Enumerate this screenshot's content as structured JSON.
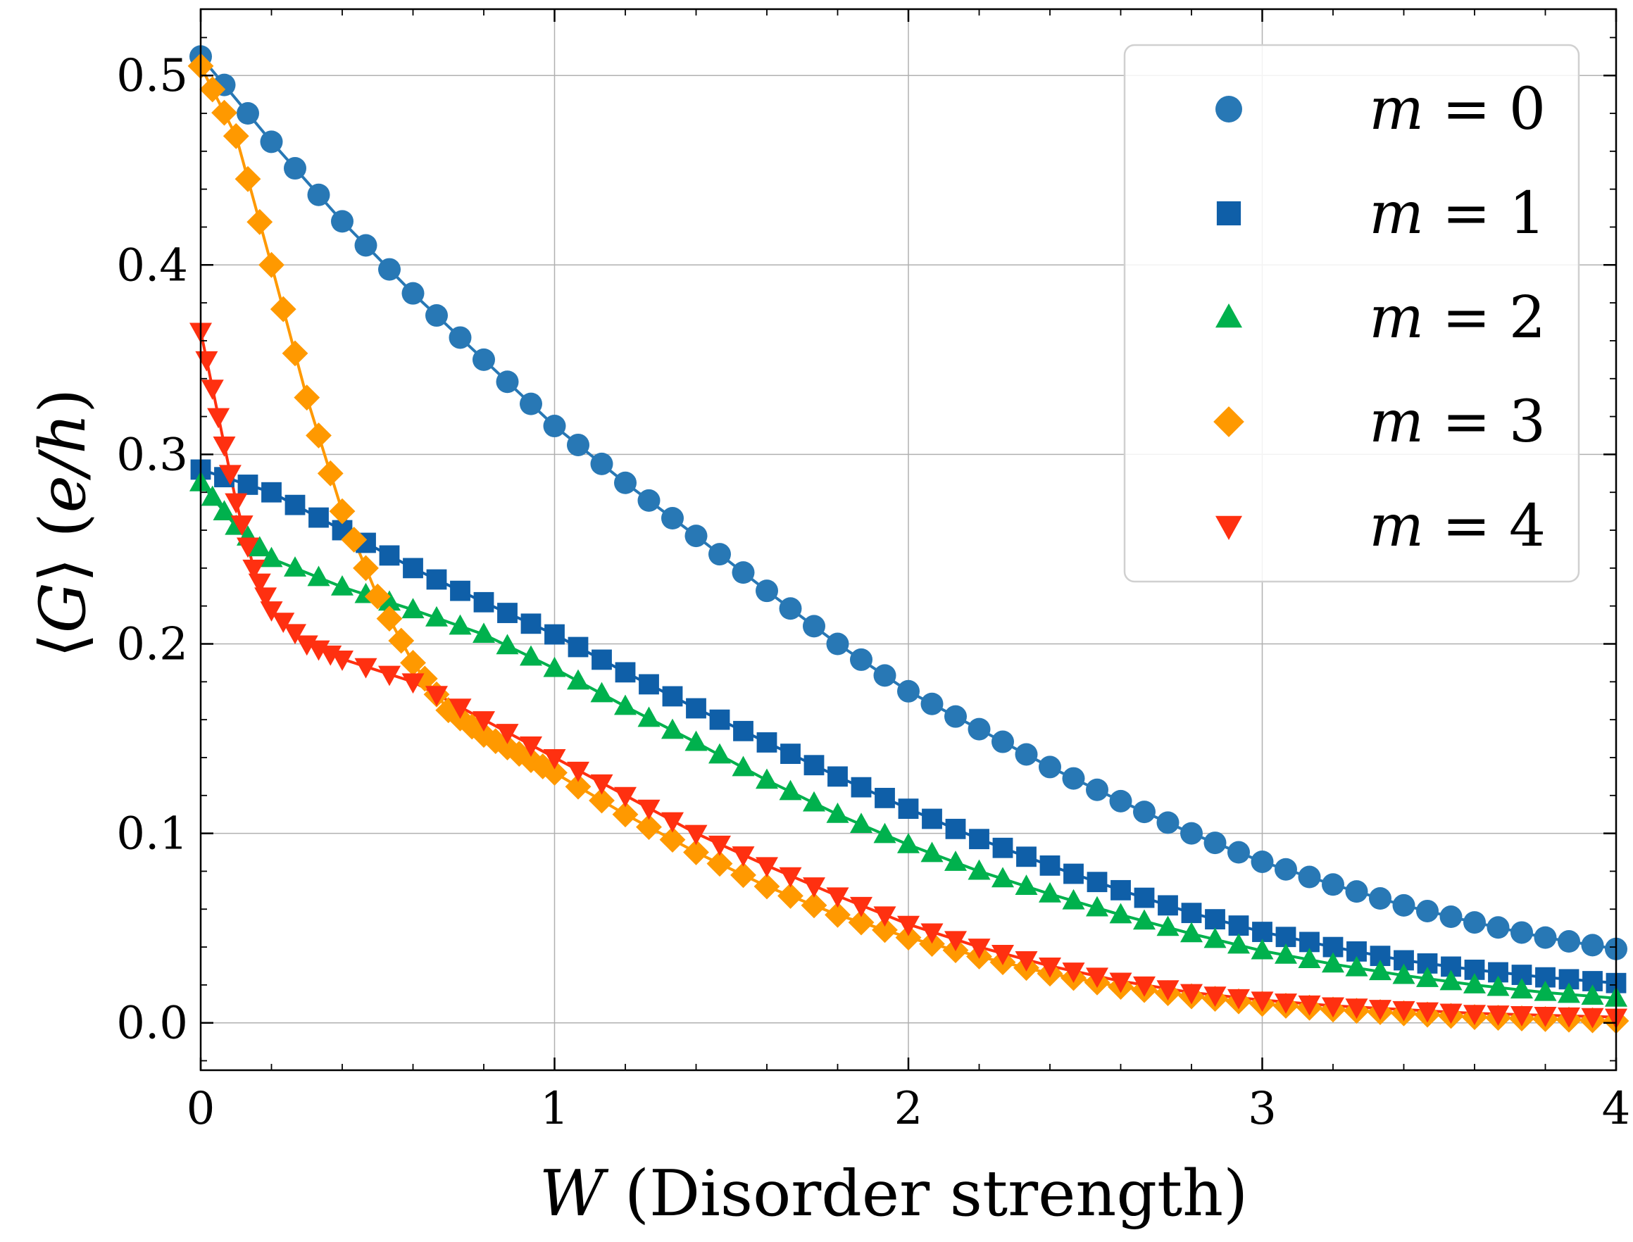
{
  "chart_data": {
    "type": "line",
    "title": "",
    "xlabel": {
      "symbol": "W",
      "text": " (Disorder strength)"
    },
    "ylabel": {
      "open": "⟨",
      "symbol": "G",
      "close": "⟩",
      "unit_open": " (",
      "unit": "e/h",
      "unit_close": ")"
    },
    "xlim": [
      0,
      4
    ],
    "ylim": [
      -0.025,
      0.535
    ],
    "xticks": [
      0,
      1,
      2,
      3,
      4
    ],
    "xtick_labels": [
      "0",
      "1",
      "2",
      "3",
      "4"
    ],
    "yticks": [
      0.0,
      0.1,
      0.2,
      0.3,
      0.4,
      0.5
    ],
    "ytick_labels": [
      "0.0",
      "0.1",
      "0.2",
      "0.3",
      "0.4",
      "0.5"
    ],
    "grid": true,
    "legend_position": "top-right",
    "series": [
      {
        "name": "m = 0",
        "symbol": "m",
        "eq": " = ",
        "num": "0",
        "marker": "circle",
        "color": "#2878b5",
        "x": [
          0,
          0.2,
          0.4,
          0.6,
          0.8,
          1.0,
          1.2,
          1.4,
          1.6,
          1.8,
          2.0,
          2.2,
          2.4,
          2.6,
          2.8,
          3.0,
          3.2,
          3.4,
          3.6,
          3.8,
          4.0
        ],
        "y": [
          0.51,
          0.465,
          0.423,
          0.385,
          0.35,
          0.315,
          0.285,
          0.257,
          0.228,
          0.2,
          0.175,
          0.155,
          0.135,
          0.117,
          0.1,
          0.085,
          0.073,
          0.062,
          0.053,
          0.045,
          0.039
        ]
      },
      {
        "name": "m = 1",
        "symbol": "m",
        "eq": " = ",
        "num": "1",
        "marker": "square",
        "color": "#0f5fa8",
        "x": [
          0,
          0.2,
          0.4,
          0.6,
          0.8,
          1.0,
          1.2,
          1.4,
          1.6,
          1.8,
          2.0,
          2.2,
          2.4,
          2.6,
          2.8,
          3.0,
          3.2,
          3.4,
          3.6,
          3.8,
          4.0
        ],
        "y": [
          0.292,
          0.28,
          0.26,
          0.24,
          0.222,
          0.205,
          0.185,
          0.166,
          0.148,
          0.13,
          0.113,
          0.097,
          0.083,
          0.07,
          0.058,
          0.048,
          0.04,
          0.033,
          0.028,
          0.024,
          0.021
        ]
      },
      {
        "name": "m = 2",
        "symbol": "m",
        "eq": " = ",
        "num": "2",
        "marker": "triangle-up",
        "color": "#00b14d",
        "x": [
          0,
          0.1,
          0.2,
          0.4,
          0.6,
          0.8,
          1.0,
          1.2,
          1.4,
          1.6,
          1.8,
          2.0,
          2.2,
          2.4,
          2.6,
          2.8,
          3.0,
          3.2,
          3.4,
          3.6,
          3.8,
          4.0
        ],
        "y": [
          0.285,
          0.262,
          0.245,
          0.23,
          0.218,
          0.205,
          0.187,
          0.167,
          0.148,
          0.128,
          0.11,
          0.094,
          0.08,
          0.068,
          0.057,
          0.047,
          0.038,
          0.031,
          0.025,
          0.02,
          0.016,
          0.013
        ]
      },
      {
        "name": "m = 3",
        "symbol": "m",
        "eq": " = ",
        "num": "3",
        "marker": "diamond",
        "color": "#ff9900",
        "x": [
          0,
          0.1,
          0.2,
          0.3,
          0.4,
          0.5,
          0.6,
          0.7,
          0.8,
          0.9,
          1.0,
          1.2,
          1.4,
          1.6,
          1.8,
          2.0,
          2.2,
          2.4,
          2.6,
          2.8,
          3.0,
          3.2,
          3.4,
          3.6,
          3.8,
          4.0
        ],
        "y": [
          0.505,
          0.468,
          0.4,
          0.33,
          0.27,
          0.225,
          0.19,
          0.165,
          0.152,
          0.142,
          0.132,
          0.11,
          0.09,
          0.072,
          0.057,
          0.045,
          0.035,
          0.026,
          0.019,
          0.014,
          0.01,
          0.007,
          0.005,
          0.003,
          0.002,
          0.001
        ]
      },
      {
        "name": "m = 4",
        "symbol": "m",
        "eq": " = ",
        "num": "4",
        "marker": "triangle-down",
        "color": "#ff3010",
        "x": [
          0,
          0.05,
          0.1,
          0.15,
          0.2,
          0.3,
          0.4,
          0.6,
          0.8,
          1.0,
          1.2,
          1.4,
          1.6,
          1.8,
          2.0,
          2.2,
          2.4,
          2.6,
          2.8,
          3.0,
          3.2,
          3.4,
          3.6,
          3.8,
          4.0
        ],
        "y": [
          0.365,
          0.32,
          0.275,
          0.24,
          0.218,
          0.2,
          0.192,
          0.18,
          0.16,
          0.14,
          0.12,
          0.1,
          0.083,
          0.067,
          0.052,
          0.04,
          0.03,
          0.022,
          0.016,
          0.012,
          0.009,
          0.007,
          0.005,
          0.004,
          0.003
        ]
      }
    ]
  }
}
